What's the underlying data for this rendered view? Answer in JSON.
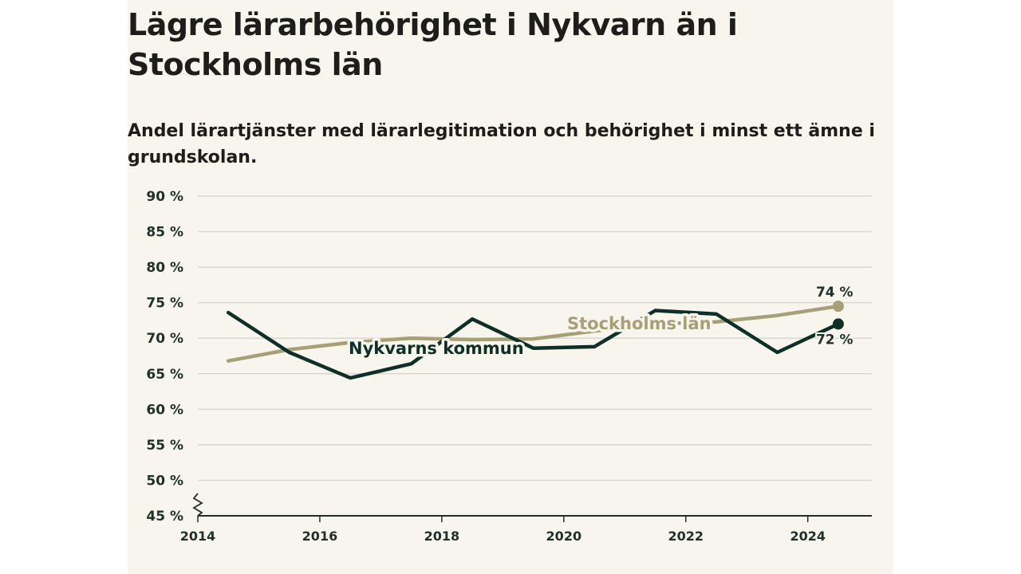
{
  "title": "Lägre lärarbehörighet i Nykvarn än i Stockholms län",
  "subtitle": "Andel lärartjänster med lärarlegitimation och behörighet i minst ett ämne i grundskolan.",
  "colors": {
    "background": "#f7f5ec",
    "nykvarn": "#0e2f28",
    "stockholm": "#a69f78",
    "grid": "#d9d7d2",
    "axis": "#1f2f2a"
  },
  "chart_data": {
    "type": "line",
    "y_axis": {
      "ticks": [
        45,
        50,
        55,
        60,
        65,
        70,
        75,
        80,
        85,
        90
      ],
      "tick_suffix": " %",
      "ylim": [
        45,
        90
      ],
      "axis_break": true
    },
    "x_axis": {
      "ticks": [
        2014,
        2016,
        2018,
        2020,
        2022,
        2024
      ],
      "xlim": [
        2014,
        2025.05
      ]
    },
    "grid": "horizontal",
    "series": [
      {
        "name": "Stockholms län",
        "key": "stockholm",
        "x": [
          2014.5,
          2015.5,
          2016.5,
          2017.5,
          2018.5,
          2019.5,
          2020.5,
          2021.5,
          2022.5,
          2023.5,
          2024.5
        ],
        "y": [
          66.8,
          68.4,
          69.4,
          70.0,
          69.8,
          69.9,
          71.0,
          72.0,
          72.3,
          73.2,
          74.5
        ],
        "end_label": "74 %"
      },
      {
        "name": "Nykvarns kommun",
        "key": "nykvarn",
        "x": [
          2014.5,
          2015.5,
          2016.5,
          2017.5,
          2018.5,
          2019.5,
          2020.5,
          2021.5,
          2022.5,
          2023.5,
          2024.5
        ],
        "y": [
          73.6,
          68.0,
          64.4,
          66.4,
          72.7,
          68.6,
          68.8,
          73.9,
          73.4,
          68.0,
          72.0
        ],
        "end_label": "72 %"
      }
    ]
  }
}
